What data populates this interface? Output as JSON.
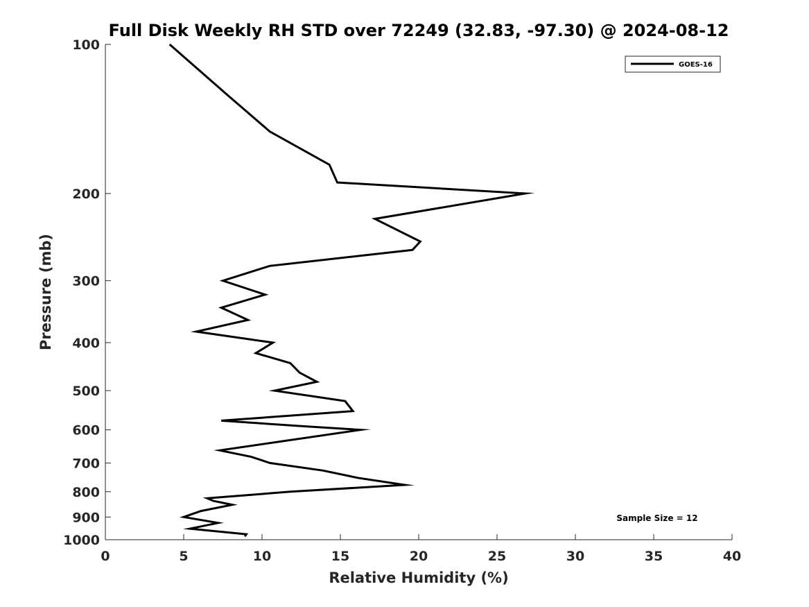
{
  "chart_data": {
    "type": "line",
    "title": "Full Disk Weekly RH STD over 72249 (32.83, -97.30) @ 2024-08-12",
    "xlabel": "Relative Humidity (%)",
    "ylabel": "Pressure (mb)",
    "xlim": [
      0,
      40
    ],
    "ylim": [
      1000,
      100
    ],
    "yscale": "log",
    "x_ticks": [
      0,
      5,
      10,
      15,
      20,
      25,
      30,
      35,
      40
    ],
    "y_ticks": [
      100,
      200,
      300,
      400,
      500,
      600,
      700,
      800,
      900,
      1000
    ],
    "grid": false,
    "legend_position": "top-right",
    "annotation": "Sample Size = 12",
    "series": [
      {
        "name": "GOES-16",
        "color": "#000000",
        "points": [
          [
            4.1,
            100
          ],
          [
            7.6,
            125
          ],
          [
            10.5,
            150
          ],
          [
            14.3,
            175
          ],
          [
            14.8,
            190
          ],
          [
            26.8,
            200
          ],
          [
            17.2,
            225
          ],
          [
            20.1,
            250
          ],
          [
            19.6,
            260
          ],
          [
            10.5,
            280
          ],
          [
            7.5,
            300
          ],
          [
            10.2,
            320
          ],
          [
            7.4,
            340
          ],
          [
            9.1,
            360
          ],
          [
            5.8,
            380
          ],
          [
            10.7,
            400
          ],
          [
            9.6,
            420
          ],
          [
            11.8,
            440
          ],
          [
            12.4,
            460
          ],
          [
            13.5,
            480
          ],
          [
            10.8,
            500
          ],
          [
            15.3,
            525
          ],
          [
            15.8,
            550
          ],
          [
            7.4,
            575
          ],
          [
            12.6,
            590
          ],
          [
            16.3,
            600
          ],
          [
            7.3,
            660
          ],
          [
            9.3,
            680
          ],
          [
            10.5,
            700
          ],
          [
            13.9,
            725
          ],
          [
            16.1,
            750
          ],
          [
            19.1,
            775
          ],
          [
            11.8,
            800
          ],
          [
            6.5,
            825
          ],
          [
            6.9,
            835
          ],
          [
            8.1,
            850
          ],
          [
            6.1,
            875
          ],
          [
            5.0,
            900
          ],
          [
            7.2,
            925
          ],
          [
            5.4,
            950
          ],
          [
            9.0,
            975
          ],
          [
            8.9,
            985
          ]
        ]
      }
    ]
  }
}
